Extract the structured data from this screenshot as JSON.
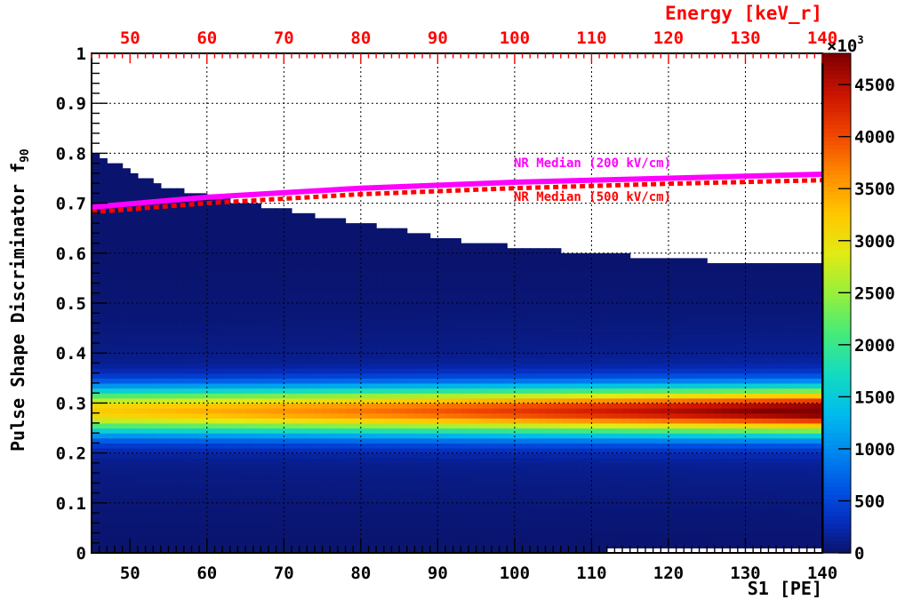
{
  "chart_data": {
    "type": "heatmap",
    "x_axis": {
      "label": "S1 [PE]",
      "range": [
        45,
        140
      ],
      "ticks": [
        "50",
        "60",
        "70",
        "80",
        "90",
        "100",
        "110",
        "120",
        "130",
        "140"
      ]
    },
    "x2_axis": {
      "label": "Energy [keV_r]",
      "ticks": [
        "50",
        "60",
        "70",
        "80",
        "90",
        "100",
        "110",
        "120",
        "130",
        "140"
      ],
      "color": "#ff0000"
    },
    "y_axis": {
      "label": "Pulse Shape Discriminator f",
      "label_subscript": "90",
      "range": [
        0,
        1
      ],
      "ticks": [
        "0",
        "0.1",
        "0.2",
        "0.3",
        "0.4",
        "0.5",
        "0.6",
        "0.7",
        "0.8",
        "0.9",
        "1"
      ]
    },
    "z_axis": {
      "range": [
        0,
        4800
      ],
      "ticks": [
        "0",
        "500",
        "1000",
        "1500",
        "2000",
        "2500",
        "3000",
        "3500",
        "4000",
        "4500"
      ],
      "multiplier_base": "×10",
      "multiplier_exp": "3"
    },
    "grid": true,
    "density_model": {
      "peak_f90": 0.285,
      "core_sigma": 0.032,
      "tail_sigma": 0.11,
      "tail_weight": 0.045,
      "peak_at_s1_45": 3100,
      "peak_at_s1_140": 4750,
      "upper_edge": [
        [
          45,
          0.8
        ],
        [
          55,
          0.73
        ],
        [
          65,
          0.7
        ],
        [
          80,
          0.66
        ],
        [
          95,
          0.62
        ],
        [
          110,
          0.6
        ],
        [
          125,
          0.585
        ],
        [
          140,
          0.58
        ]
      ]
    },
    "series": [
      {
        "name": "NR Median (200 kV/cm)",
        "style": "solid",
        "color": "#ff00ff",
        "x": [
          45,
          60,
          80,
          100,
          120,
          140
        ],
        "y": [
          0.692,
          0.712,
          0.73,
          0.742,
          0.75,
          0.758
        ]
      },
      {
        "name": "NR Median (500 kV/cm)",
        "style": "dotted",
        "color": "#ff0000",
        "x": [
          45,
          60,
          80,
          100,
          120,
          140
        ],
        "y": [
          0.682,
          0.7,
          0.718,
          0.73,
          0.739,
          0.746
        ]
      }
    ],
    "legend": [
      "NR Median (200 kV/cm)",
      "NR Median (500 kV/cm)"
    ]
  }
}
